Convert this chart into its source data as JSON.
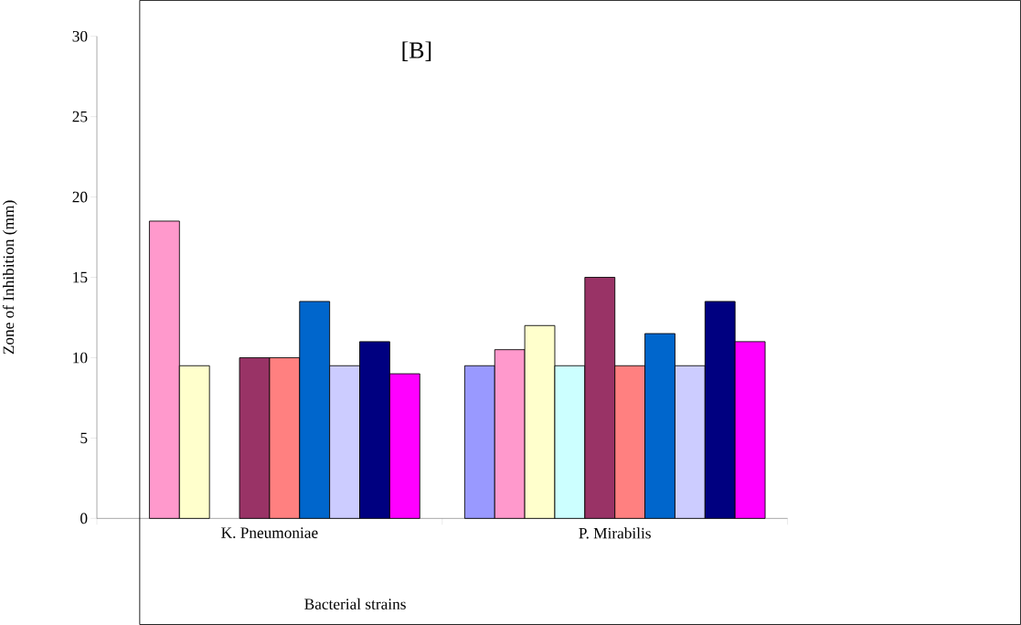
{
  "chart_data": {
    "type": "bar",
    "title": "[B]",
    "xlabel": "Bacterial strains",
    "ylabel": "Zone of Inhibition (mm)",
    "categories": [
      "K. Pneumoniae",
      "P. Mirabilis"
    ],
    "series": [
      {
        "color": "#9999ff",
        "values": [
          null,
          9.5
        ]
      },
      {
        "color": "#ff99cc",
        "values": [
          18.5,
          10.5
        ]
      },
      {
        "color": "#ffffcc",
        "values": [
          9.5,
          12
        ]
      },
      {
        "color": "#ccffff",
        "values": [
          null,
          9.5
        ]
      },
      {
        "color": "#993366",
        "values": [
          10,
          15
        ]
      },
      {
        "color": "#ff8080",
        "values": [
          10,
          9.5
        ]
      },
      {
        "color": "#0066cc",
        "values": [
          13.5,
          11.5
        ]
      },
      {
        "color": "#ccccff",
        "values": [
          9.5,
          9.5
        ]
      },
      {
        "color": "#000080",
        "values": [
          11,
          13.5
        ]
      },
      {
        "color": "#ff00ff",
        "values": [
          9,
          11
        ]
      }
    ],
    "ylim": [
      0,
      30
    ],
    "yticks": [
      0,
      5,
      10,
      15,
      20,
      25,
      30
    ]
  }
}
